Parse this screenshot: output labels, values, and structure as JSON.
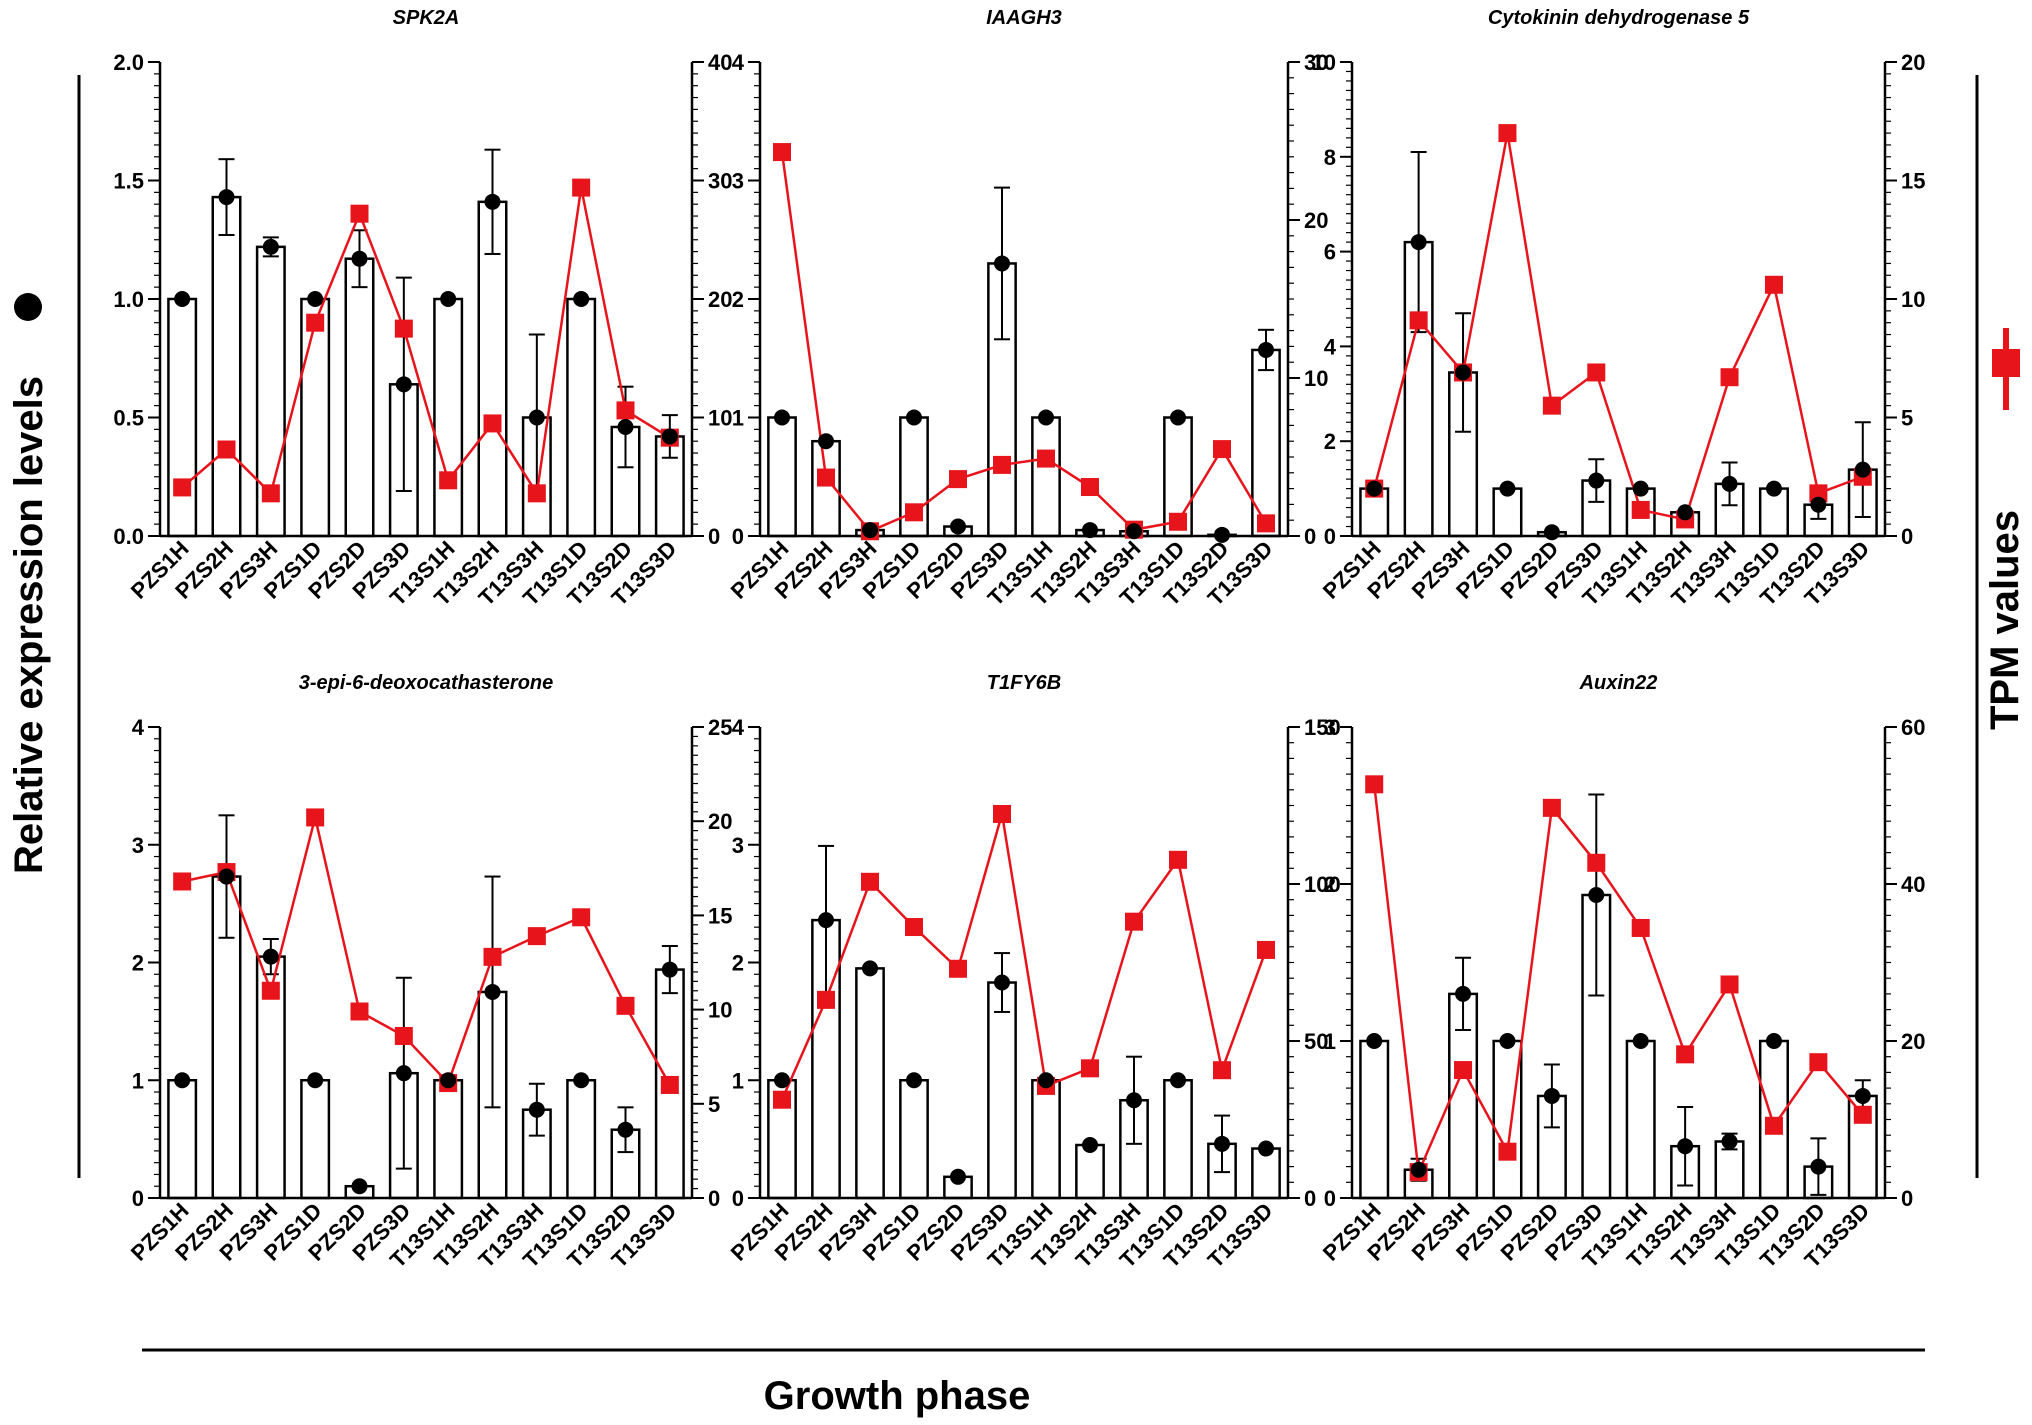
{
  "figure": {
    "left_axis_label": "Relative expression levels",
    "right_axis_label": "TPM values",
    "x_axis_label": "Growth phase",
    "left_series_name": "Relative expression",
    "right_series_name": "TPM",
    "colors": {
      "bars": "#ffffff",
      "bar_stroke": "#000000",
      "dots": "#000000",
      "tpm_line": "#e8141c",
      "axis": "#000000"
    }
  },
  "chart_data": [
    {
      "type": "bar",
      "title": "SPK2A",
      "categories": [
        "PZS1H",
        "PZS2H",
        "PZS3H",
        "PZS1D",
        "PZS2D",
        "PZS3D",
        "T13S1H",
        "T13S2H",
        "T13S3H",
        "T13S1D",
        "T13S2D",
        "T13S3D"
      ],
      "ylim_left": [
        0,
        2.0
      ],
      "yticks_left": [
        0,
        0.5,
        1.0,
        1.5,
        2.0
      ],
      "ytick_labels_left": [
        "0.0",
        "0.5",
        "1.0",
        "1.5",
        "2.0"
      ],
      "ylim_right": [
        0,
        40
      ],
      "yticks_right": [
        0,
        10,
        20,
        30,
        40
      ],
      "ytick_labels_right": [
        "0",
        "10",
        "20",
        "30",
        "40"
      ],
      "series": [
        {
          "name": "Relative expression",
          "axis": "left",
          "values": [
            1.0,
            1.43,
            1.22,
            1.0,
            1.17,
            0.64,
            1.0,
            1.41,
            0.5,
            1.0,
            0.46,
            0.42
          ],
          "errors": [
            0,
            0.16,
            0.04,
            0,
            0.12,
            0.45,
            0,
            0.22,
            0.35,
            0,
            0.17,
            0.09
          ]
        },
        {
          "name": "TPM",
          "axis": "right",
          "values": [
            4.1,
            7.3,
            3.6,
            18.0,
            27.2,
            17.5,
            4.7,
            9.5,
            3.6,
            29.4,
            10.6,
            8.3
          ]
        }
      ]
    },
    {
      "type": "bar",
      "title": "IAAGH3",
      "categories": [
        "PZS1H",
        "PZS2H",
        "PZS3H",
        "PZS1D",
        "PZS2D",
        "PZS3D",
        "T13S1H",
        "T13S2H",
        "T13S3H",
        "T13S1D",
        "T13S2D",
        "T13S3D"
      ],
      "ylim_left": [
        0,
        4
      ],
      "yticks_left": [
        0,
        1,
        2,
        3,
        4
      ],
      "ytick_labels_left": [
        "0",
        "1",
        "2",
        "3",
        "4"
      ],
      "ylim_right": [
        0,
        30
      ],
      "yticks_right": [
        0,
        10,
        20,
        30
      ],
      "ytick_labels_right": [
        "0",
        "10",
        "20",
        "30"
      ],
      "series": [
        {
          "name": "Relative expression",
          "axis": "left",
          "values": [
            1.0,
            0.8,
            0.05,
            1.0,
            0.08,
            2.3,
            1.0,
            0.05,
            0.04,
            1.0,
            0.01,
            1.57
          ],
          "errors": [
            0,
            0,
            0,
            0,
            0,
            0.64,
            0,
            0,
            0,
            0,
            0,
            0.17
          ]
        },
        {
          "name": "TPM",
          "axis": "right",
          "values": [
            24.3,
            3.7,
            0.3,
            1.5,
            3.6,
            4.5,
            4.9,
            3.1,
            0.4,
            0.9,
            5.5,
            0.8
          ]
        }
      ]
    },
    {
      "type": "bar",
      "title": "Cytokinin dehydrogenase 5",
      "categories": [
        "PZS1H",
        "PZS2H",
        "PZS3H",
        "PZS1D",
        "PZS2D",
        "PZS3D",
        "T13S1H",
        "T13S2H",
        "T13S3H",
        "T13S1D",
        "T13S2D",
        "T13S3D"
      ],
      "ylim_left": [
        0,
        10
      ],
      "yticks_left": [
        0,
        2,
        4,
        6,
        8,
        10
      ],
      "ytick_labels_left": [
        "0",
        "2",
        "4",
        "6",
        "8",
        "10"
      ],
      "ylim_right": [
        0,
        20
      ],
      "yticks_right": [
        0,
        5,
        10,
        15,
        20
      ],
      "ytick_labels_right": [
        "0",
        "5",
        "10",
        "15",
        "20"
      ],
      "series": [
        {
          "name": "Relative expression",
          "axis": "left",
          "values": [
            1.0,
            6.2,
            3.45,
            1.0,
            0.08,
            1.17,
            1.0,
            0.5,
            1.1,
            1.0,
            0.66,
            1.4
          ],
          "errors": [
            0,
            1.9,
            1.25,
            0,
            0,
            0.45,
            0,
            0,
            0.45,
            0,
            0.3,
            1.0
          ]
        },
        {
          "name": "TPM",
          "axis": "right",
          "values": [
            2.0,
            9.1,
            6.9,
            17.0,
            5.5,
            6.9,
            1.1,
            0.7,
            6.7,
            10.6,
            1.8,
            2.5
          ]
        }
      ]
    },
    {
      "type": "bar",
      "title": "3-epi-6-deoxocathasterone",
      "categories": [
        "PZS1H",
        "PZS2H",
        "PZS3H",
        "PZS1D",
        "PZS2D",
        "PZS3D",
        "T13S1H",
        "T13S2H",
        "T13S3H",
        "T13S1D",
        "T13S2D",
        "T13S3D"
      ],
      "ylim_left": [
        0,
        4
      ],
      "yticks_left": [
        0,
        1,
        2,
        3,
        4
      ],
      "ytick_labels_left": [
        "0",
        "1",
        "2",
        "3",
        "4"
      ],
      "ylim_right": [
        0,
        25
      ],
      "yticks_right": [
        0,
        5,
        10,
        15,
        20,
        25
      ],
      "ytick_labels_right": [
        "0",
        "5",
        "10",
        "15",
        "20",
        "25"
      ],
      "series": [
        {
          "name": "Relative expression",
          "axis": "left",
          "values": [
            1.0,
            2.73,
            2.05,
            1.0,
            0.1,
            1.06,
            1.0,
            1.75,
            0.75,
            1.0,
            0.58,
            1.94
          ],
          "errors": [
            0,
            0.52,
            0.15,
            0,
            0,
            0.81,
            0,
            0.98,
            0.22,
            0,
            0.19,
            0.2
          ]
        },
        {
          "name": "TPM",
          "axis": "right",
          "values": [
            16.8,
            17.3,
            11.0,
            20.2,
            9.9,
            8.6,
            6.1,
            12.8,
            13.9,
            14.9,
            10.2,
            6.0
          ]
        }
      ]
    },
    {
      "type": "bar",
      "title": "T1FY6B",
      "categories": [
        "PZS1H",
        "PZS2H",
        "PZS3H",
        "PZS1D",
        "PZS2D",
        "PZS3D",
        "T13S1H",
        "T13S2H",
        "T13S3H",
        "T13S1D",
        "T13S2D",
        "T13S3D"
      ],
      "ylim_left": [
        0,
        4
      ],
      "yticks_left": [
        0,
        1,
        2,
        3,
        4
      ],
      "ytick_labels_left": [
        "0",
        "1",
        "2",
        "3",
        "4"
      ],
      "ylim_right": [
        0,
        150
      ],
      "yticks_right": [
        0,
        50,
        100,
        150
      ],
      "ytick_labels_right": [
        "0",
        "50",
        "100",
        "150"
      ],
      "series": [
        {
          "name": "Relative expression",
          "axis": "left",
          "values": [
            1.0,
            2.36,
            1.95,
            1.0,
            0.18,
            1.83,
            1.0,
            0.45,
            0.83,
            1.0,
            0.46,
            0.42
          ],
          "errors": [
            0,
            0.63,
            0,
            0,
            0,
            0.25,
            0,
            0,
            0.37,
            0,
            0.24,
            0
          ]
        },
        {
          "name": "TPM",
          "axis": "right",
          "values": [
            31.3,
            63.1,
            100.7,
            86.3,
            73.0,
            122.3,
            35.7,
            41.3,
            88.0,
            107.7,
            40.7,
            79.0
          ]
        }
      ]
    },
    {
      "type": "bar",
      "title": "Auxin22",
      "categories": [
        "PZS1H",
        "PZS2H",
        "PZS3H",
        "PZS1D",
        "PZS2D",
        "PZS3D",
        "T13S1H",
        "T13S2H",
        "T13S3H",
        "T13S1D",
        "T13S2D",
        "T13S3D"
      ],
      "ylim_left": [
        0,
        3
      ],
      "yticks_left": [
        0,
        1,
        2,
        3
      ],
      "ytick_labels_left": [
        "0",
        "1",
        "2",
        "3"
      ],
      "ylim_right": [
        0,
        60
      ],
      "yticks_right": [
        0,
        20,
        40,
        60
      ],
      "ytick_labels_right": [
        "0",
        "20",
        "40",
        "60"
      ],
      "series": [
        {
          "name": "Relative expression",
          "axis": "left",
          "values": [
            1.0,
            0.18,
            1.3,
            1.0,
            0.65,
            1.93,
            1.0,
            0.33,
            0.36,
            1.0,
            0.2,
            0.65
          ],
          "errors": [
            0,
            0.07,
            0.23,
            0,
            0.2,
            0.64,
            0,
            0.25,
            0.05,
            0,
            0.18,
            0.1
          ]
        },
        {
          "name": "TPM",
          "axis": "right",
          "values": [
            52.7,
            3.3,
            16.3,
            5.9,
            49.7,
            42.7,
            34.4,
            18.3,
            27.2,
            9.2,
            17.3,
            10.6
          ]
        }
      ]
    }
  ]
}
